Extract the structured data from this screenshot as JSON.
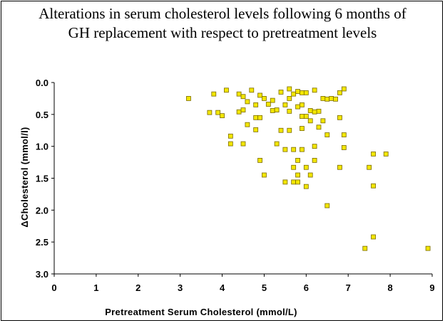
{
  "chart_data": {
    "type": "scatter",
    "title_lines": [
      "Alterations in serum cholesterol levels following 6 months of",
      "GH replacement with respect to pretreatment levels"
    ],
    "xlabel": "Pretreatment Serum Cholesterol (mmol/L)",
    "ylabel": "ΔCholesterol (mmol/l)",
    "xlim": [
      0,
      9
    ],
    "ylim": [
      0.0,
      3.0
    ],
    "y_inverted": true,
    "x_ticks": [
      "0",
      "1",
      "2",
      "3",
      "4",
      "5",
      "6",
      "7",
      "8",
      "9"
    ],
    "y_ticks": [
      "0.0",
      "0.5",
      "1.0",
      "1.5",
      "2.0",
      "2.5",
      "3.0"
    ],
    "marker_color": "#f2e600",
    "marker_edge": "#7a6a00",
    "points": [
      [
        3.2,
        0.25
      ],
      [
        3.8,
        0.18
      ],
      [
        4.1,
        0.12
      ],
      [
        3.7,
        0.47
      ],
      [
        3.9,
        0.47
      ],
      [
        4.0,
        0.52
      ],
      [
        4.4,
        0.18
      ],
      [
        4.5,
        0.22
      ],
      [
        4.7,
        0.12
      ],
      [
        4.9,
        0.2
      ],
      [
        5.0,
        0.25
      ],
      [
        5.2,
        0.28
      ],
      [
        5.4,
        0.15
      ],
      [
        5.6,
        0.1
      ],
      [
        5.7,
        0.18
      ],
      [
        5.8,
        0.14
      ],
      [
        5.9,
        0.16
      ],
      [
        6.0,
        0.16
      ],
      [
        6.2,
        0.12
      ],
      [
        6.4,
        0.25
      ],
      [
        6.5,
        0.26
      ],
      [
        6.6,
        0.25
      ],
      [
        6.7,
        0.26
      ],
      [
        6.8,
        0.16
      ],
      [
        6.9,
        0.1
      ],
      [
        4.4,
        0.46
      ],
      [
        4.6,
        0.3
      ],
      [
        4.8,
        0.35
      ],
      [
        5.1,
        0.34
      ],
      [
        5.2,
        0.44
      ],
      [
        5.5,
        0.35
      ],
      [
        5.6,
        0.25
      ],
      [
        5.8,
        0.38
      ],
      [
        5.9,
        0.35
      ],
      [
        6.1,
        0.44
      ],
      [
        6.3,
        0.45
      ],
      [
        4.5,
        0.43
      ],
      [
        4.8,
        0.55
      ],
      [
        4.9,
        0.55
      ],
      [
        5.3,
        0.43
      ],
      [
        5.6,
        0.45
      ],
      [
        5.9,
        0.53
      ],
      [
        6.0,
        0.53
      ],
      [
        6.2,
        0.46
      ],
      [
        6.4,
        0.6
      ],
      [
        6.8,
        0.55
      ],
      [
        4.6,
        0.66
      ],
      [
        4.8,
        0.74
      ],
      [
        5.4,
        0.75
      ],
      [
        5.6,
        0.75
      ],
      [
        5.9,
        0.72
      ],
      [
        6.1,
        0.6
      ],
      [
        6.3,
        0.7
      ],
      [
        6.5,
        0.82
      ],
      [
        6.9,
        0.82
      ],
      [
        4.2,
        0.84
      ],
      [
        4.2,
        0.96
      ],
      [
        4.5,
        0.96
      ],
      [
        5.3,
        0.96
      ],
      [
        5.5,
        1.05
      ],
      [
        5.7,
        1.05
      ],
      [
        5.9,
        1.05
      ],
      [
        6.2,
        1.0
      ],
      [
        6.9,
        1.02
      ],
      [
        7.6,
        1.12
      ],
      [
        7.9,
        1.12
      ],
      [
        4.9,
        1.22
      ],
      [
        5.8,
        1.22
      ],
      [
        6.2,
        1.22
      ],
      [
        5.7,
        1.33
      ],
      [
        6.0,
        1.33
      ],
      [
        6.8,
        1.33
      ],
      [
        7.5,
        1.33
      ],
      [
        5.0,
        1.45
      ],
      [
        5.8,
        1.45
      ],
      [
        6.1,
        1.45
      ],
      [
        5.5,
        1.56
      ],
      [
        5.7,
        1.56
      ],
      [
        5.8,
        1.56
      ],
      [
        6.0,
        1.63
      ],
      [
        7.6,
        1.62
      ],
      [
        6.5,
        1.93
      ],
      [
        7.6,
        2.42
      ],
      [
        7.4,
        2.6
      ],
      [
        8.9,
        2.6
      ]
    ]
  }
}
